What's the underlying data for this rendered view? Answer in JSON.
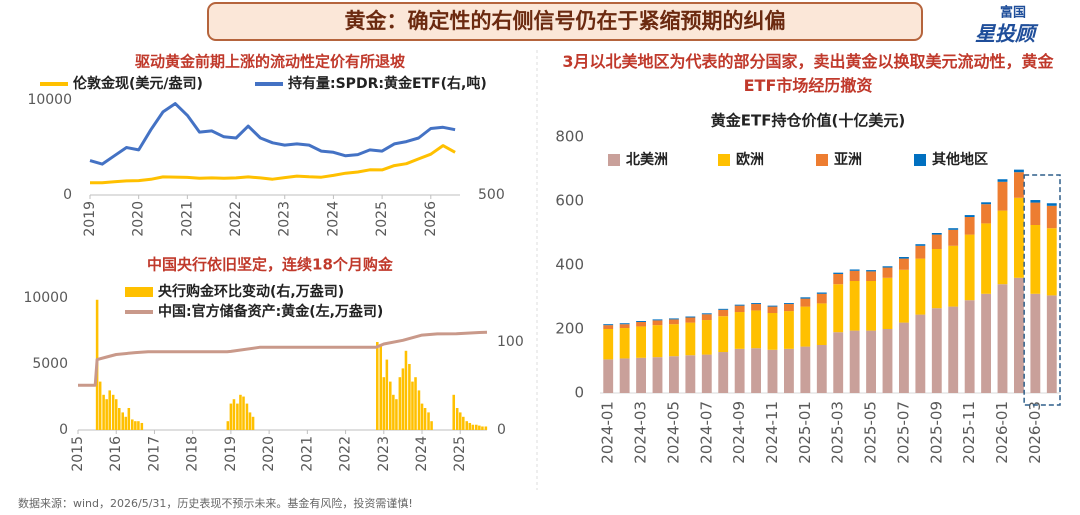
{
  "header": {
    "title": "黄金：确定性的右侧信号仍在于紧缩预期的纠偏"
  },
  "logo": {
    "top": "富国",
    "main": "星投顾"
  },
  "footer": "数据来源：wind，2026/5/31，历史表现不预示未来。基金有风险，投资需谨慎!",
  "chart_data": [
    {
      "type": "line",
      "title": "驱动黄金前期上涨的流动性定价有所退坡",
      "xlim": [
        2019,
        2026.6
      ],
      "xticks": [
        2019,
        2020,
        2021,
        2022,
        2023,
        2024,
        2025,
        2026
      ],
      "ylim": [
        0,
        10000
      ],
      "yticks": [
        0,
        10000
      ],
      "y2lim": [
        500,
        1300
      ],
      "y2ticks": [
        500
      ],
      "series": [
        {
          "name": "伦敦金现(美元/盎司)",
          "color": "#ffc000",
          "x": [
            2019,
            2019.25,
            2019.5,
            2019.75,
            2020,
            2020.25,
            2020.5,
            2020.75,
            2021,
            2021.25,
            2021.5,
            2021.75,
            2022,
            2022.25,
            2022.5,
            2022.75,
            2023,
            2023.25,
            2023.5,
            2023.75,
            2024,
            2024.25,
            2024.5,
            2024.75,
            2025,
            2025.25,
            2025.5,
            2025.75,
            2026,
            2026.25,
            2026.5
          ],
          "values": [
            1290,
            1290,
            1400,
            1480,
            1520,
            1650,
            1900,
            1880,
            1850,
            1770,
            1800,
            1760,
            1800,
            1900,
            1800,
            1660,
            1830,
            1990,
            1920,
            1870,
            2060,
            2300,
            2420,
            2650,
            2640,
            3100,
            3300,
            3800,
            4300,
            5200,
            4500
          ]
        },
        {
          "name": "持有量:SPDR:黄金ETF(右,吨)",
          "color": "#4472c4",
          "axis": "y2",
          "x": [
            2019,
            2019.25,
            2019.5,
            2019.75,
            2020,
            2020.25,
            2020.5,
            2020.75,
            2021,
            2021.25,
            2021.5,
            2021.75,
            2022,
            2022.25,
            2022.5,
            2022.75,
            2023,
            2023.25,
            2023.5,
            2023.75,
            2024,
            2024.25,
            2024.5,
            2024.75,
            2025,
            2025.25,
            2025.5,
            2025.75,
            2026,
            2026.25,
            2026.5
          ],
          "values": [
            790,
            760,
            830,
            900,
            880,
            1050,
            1200,
            1270,
            1170,
            1030,
            1040,
            990,
            980,
            1080,
            980,
            940,
            920,
            930,
            920,
            870,
            860,
            830,
            840,
            880,
            870,
            930,
            950,
            980,
            1060,
            1070,
            1050
          ]
        }
      ]
    },
    {
      "type": "combo",
      "title": "中国央行依旧坚定，连续18个月购金",
      "xlim": [
        2015,
        2025.7
      ],
      "xticks": [
        2015,
        2016,
        2017,
        2018,
        2019,
        2020,
        2021,
        2022,
        2023,
        2024,
        2025
      ],
      "ylim": [
        0,
        10000
      ],
      "yticks": [
        0,
        5000,
        10000
      ],
      "y2lim": [
        0,
        150
      ],
      "y2ticks": [
        0,
        100
      ],
      "series": [
        {
          "name": "央行购金环比变动(右,万盎司)",
          "type": "bar",
          "color": "#ffc000",
          "axis": "y2",
          "x": [
            2015.5,
            2015.58,
            2015.67,
            2015.75,
            2015.83,
            2015.92,
            2016,
            2016.08,
            2016.17,
            2016.25,
            2016.33,
            2016.42,
            2016.5,
            2016.58,
            2016.67,
            2018.92,
            2019,
            2019.08,
            2019.17,
            2019.25,
            2019.33,
            2019.42,
            2019.5,
            2019.58,
            2022.83,
            2022.92,
            2023,
            2023.08,
            2023.17,
            2023.25,
            2023.33,
            2023.42,
            2023.5,
            2023.58,
            2023.67,
            2023.75,
            2023.83,
            2023.92,
            2024,
            2024.08,
            2024.17,
            2024.25,
            2024.83,
            2024.92,
            2025,
            2025.08,
            2025.17,
            2025.25,
            2025.33,
            2025.42,
            2025.5,
            2025.58,
            2025.67
          ],
          "values": [
            148,
            55,
            40,
            35,
            45,
            40,
            35,
            25,
            20,
            15,
            25,
            12,
            10,
            10,
            8,
            10,
            30,
            35,
            30,
            40,
            38,
            30,
            20,
            15,
            100,
            95,
            60,
            80,
            55,
            40,
            35,
            60,
            70,
            90,
            75,
            55,
            60,
            45,
            30,
            25,
            20,
            10,
            40,
            25,
            20,
            15,
            10,
            8,
            6,
            6,
            5,
            4,
            4
          ]
        },
        {
          "name": "中国:官方储备资产:黄金(左,万盎司)",
          "type": "line",
          "color": "#c9998a",
          "x": [
            2015,
            2015.45,
            2015.5,
            2015.75,
            2016,
            2016.5,
            2016.83,
            2018.9,
            2019,
            2019.75,
            2022.8,
            2023,
            2023.5,
            2024,
            2024.4,
            2024.9,
            2025.5,
            2025.7
          ],
          "values": [
            3389,
            3389,
            5331,
            5530,
            5718,
            5862,
            5924,
            5924,
            5956,
            6264,
            6264,
            6512,
            6795,
            7187,
            7280,
            7296,
            7390,
            7400
          ]
        }
      ]
    },
    {
      "type": "stacked-bar",
      "title": "3月以北美地区为代表的部分国家，卖出黄金以换取美元流动性，黄金ETF市场经历撤资",
      "subtitle": "黄金ETF持仓价值(十亿美元)",
      "categories": [
        "2024-01",
        null,
        "2024-03",
        null,
        "2024-05",
        null,
        "2024-07",
        null,
        "2024-09",
        null,
        "2024-11",
        null,
        "2025-01",
        null,
        "2025-03",
        null,
        "2025-05",
        null,
        "2025-07",
        null,
        "2025-09",
        null,
        "2025-11",
        null,
        "2026-01",
        null,
        "2026-03",
        null
      ],
      "ylim": [
        0,
        800
      ],
      "yticks": [
        0,
        200,
        400,
        600,
        800
      ],
      "series": [
        {
          "name": "北美洲",
          "color": "#c9a09a",
          "values": [
            105,
            108,
            110,
            112,
            115,
            118,
            120,
            128,
            138,
            140,
            135,
            138,
            145,
            150,
            190,
            195,
            195,
            200,
            220,
            245,
            265,
            270,
            290,
            310,
            340,
            360,
            310,
            305
          ]
        },
        {
          "name": "欧洲",
          "color": "#ffc000",
          "values": [
            95,
            95,
            98,
            100,
            100,
            102,
            108,
            112,
            115,
            118,
            115,
            118,
            125,
            130,
            150,
            155,
            155,
            160,
            165,
            175,
            185,
            190,
            205,
            220,
            230,
            250,
            215,
            210
          ]
        },
        {
          "name": "亚洲",
          "color": "#ed7d31",
          "values": [
            12,
            12,
            14,
            15,
            15,
            16,
            18,
            20,
            20,
            20,
            20,
            22,
            25,
            30,
            32,
            32,
            30,
            32,
            35,
            40,
            45,
            50,
            55,
            60,
            90,
            80,
            70,
            70
          ]
        },
        {
          "name": "其他地区",
          "color": "#0070c0",
          "values": [
            3,
            3,
            3,
            3,
            3,
            3,
            3,
            3,
            3,
            3,
            3,
            3,
            4,
            4,
            4,
            4,
            4,
            4,
            5,
            5,
            5,
            5,
            6,
            6,
            8,
            8,
            8,
            8
          ]
        }
      ]
    }
  ]
}
